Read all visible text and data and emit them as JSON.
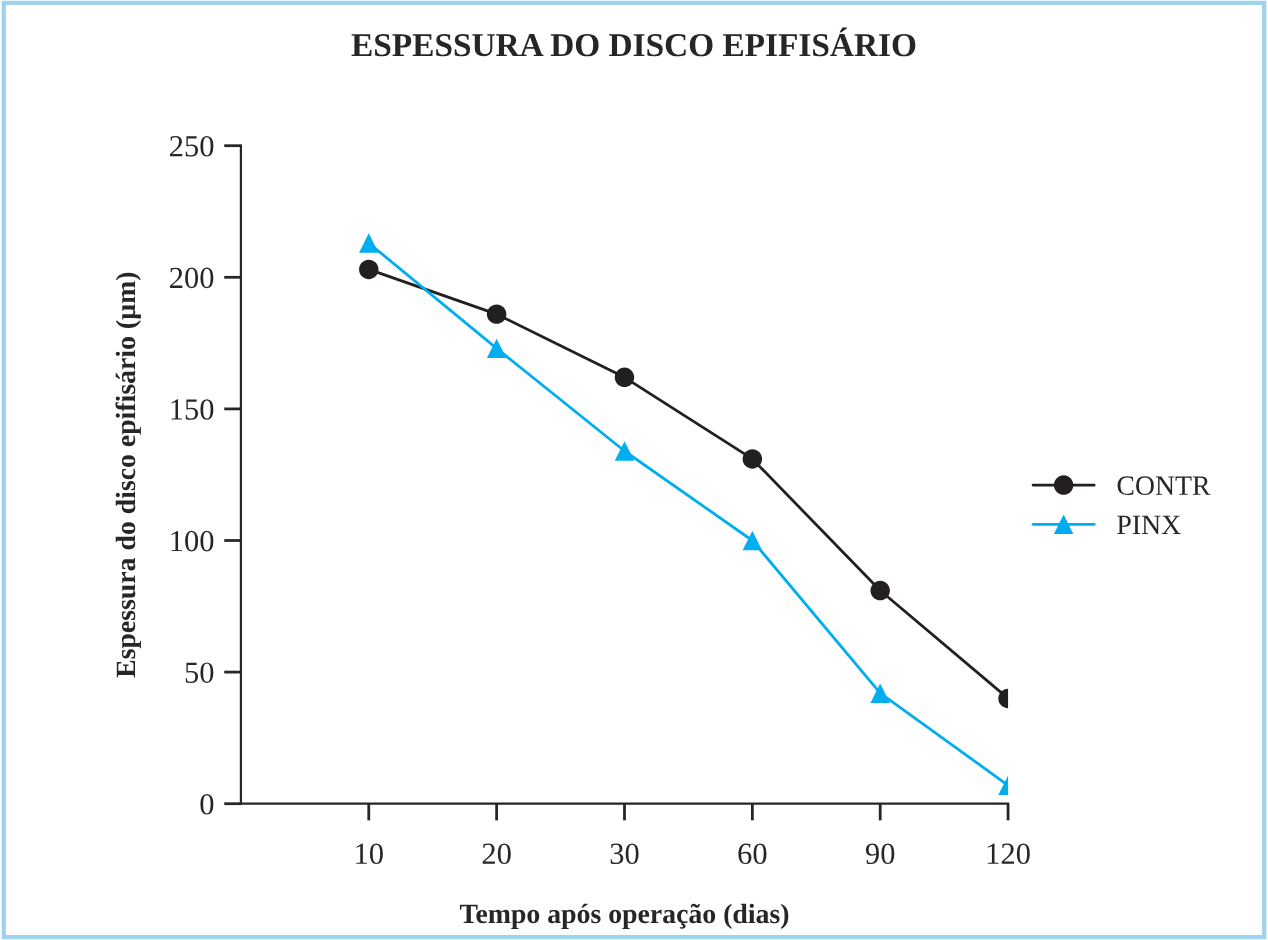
{
  "chart_data": {
    "type": "line",
    "title": "ESPESSURA DO DISCO EPIFISÁRIO",
    "xlabel": "Tempo após operação (dias)",
    "ylabel": "Espessura do disco epifisário (µm)",
    "categories": [
      "10",
      "20",
      "30",
      "60",
      "90",
      "120"
    ],
    "series": [
      {
        "name": "CONTR",
        "color": "#231f20",
        "marker": "circle",
        "values": [
          203,
          186,
          162,
          131,
          81,
          40
        ]
      },
      {
        "name": "PINX",
        "color": "#00aeef",
        "marker": "triangle",
        "values": [
          213,
          173,
          134,
          100,
          42,
          7
        ]
      }
    ],
    "ylim": [
      0,
      250
    ],
    "yticks": [
      0,
      50,
      100,
      150,
      200,
      250
    ],
    "grid": false,
    "legend": "right",
    "line_style": "solid"
  }
}
